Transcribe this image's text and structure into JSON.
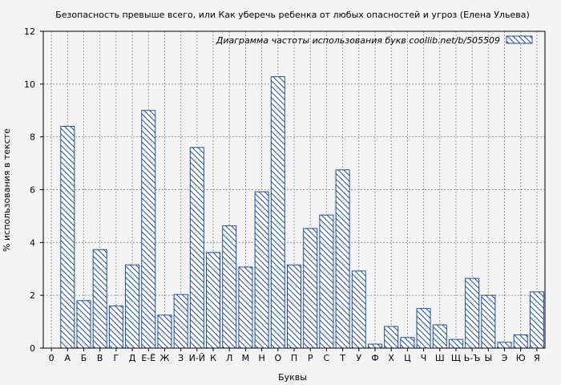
{
  "chart_data": {
    "type": "bar",
    "title": "Безопасность превыше всего, или Как уберечь ребенка от любых опасностей и угроз (Елена Ульева)",
    "xlabel": "Буквы",
    "ylabel": "% использования в тексте",
    "ylim": [
      0,
      12
    ],
    "yticks": [
      0,
      2,
      4,
      6,
      8,
      10,
      12
    ],
    "grid": true,
    "legend": {
      "label": "Диаграмма частоты использования букв  coollib.net/b/505509",
      "placement": "top-right"
    },
    "categories": [
      "0",
      "А",
      "Б",
      "В",
      "Г",
      "Д",
      "Е-Ё",
      "Ж",
      "З",
      "И-Й",
      "К",
      "Л",
      "М",
      "Н",
      "О",
      "П",
      "Р",
      "С",
      "Т",
      "У",
      "Ф",
      "Х",
      "Ц",
      "Ч",
      "Ш",
      "Щ",
      "Ь-Ъ",
      "Ы",
      "Э",
      "Ю",
      "Я"
    ],
    "values": [
      0,
      8.4,
      1.8,
      3.73,
      1.6,
      3.15,
      9.0,
      1.25,
      2.03,
      7.6,
      3.62,
      4.63,
      3.07,
      5.92,
      10.28,
      3.15,
      4.53,
      5.04,
      6.75,
      2.92,
      0.15,
      0.82,
      0.4,
      1.5,
      0.88,
      0.33,
      2.64,
      2.0,
      0.22,
      0.5,
      2.13
    ],
    "colors": {
      "bar_stroke": "#1f4e9c",
      "hatch": "#1f4e9c",
      "bar_fill": "#ffffff",
      "grid": "#9a9a9a",
      "background": "#f4f4f4"
    }
  }
}
